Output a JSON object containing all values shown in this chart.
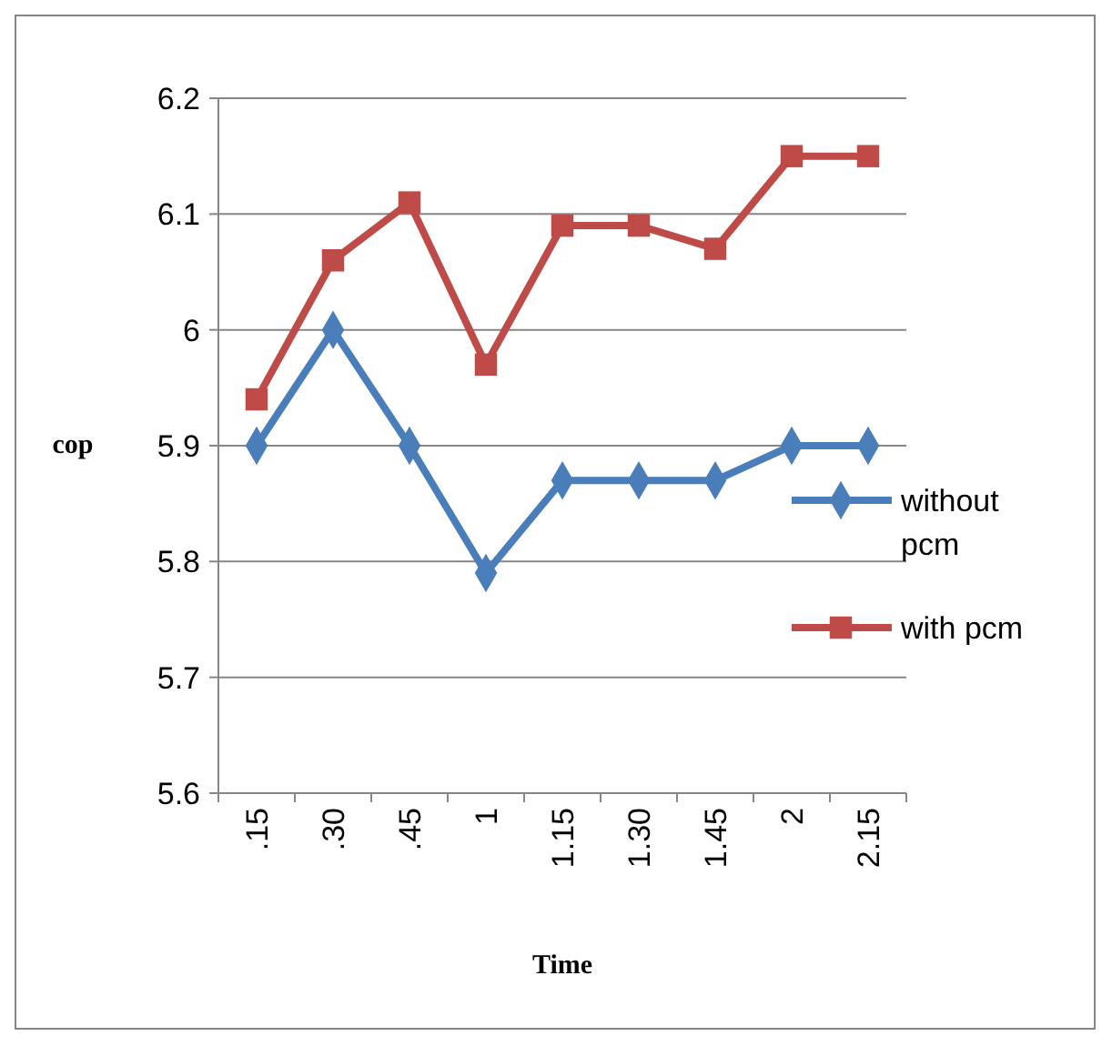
{
  "chart_data": {
    "type": "line",
    "xlabel": "Time",
    "ylabel": "cop",
    "categories": [
      ".15",
      ".30",
      ".45",
      "1",
      "1.15",
      "1.30",
      "1.45",
      "2",
      "2.15"
    ],
    "series": [
      {
        "name": "without pcm",
        "color": "#4a7ebb",
        "marker": "diamond",
        "values": [
          5.9,
          6.0,
          5.9,
          5.79,
          5.87,
          5.87,
          5.87,
          5.9,
          5.9
        ]
      },
      {
        "name": "with pcm",
        "color": "#be4b48",
        "marker": "square",
        "values": [
          5.94,
          6.06,
          6.11,
          5.97,
          6.09,
          6.09,
          6.07,
          6.15,
          6.15
        ]
      }
    ],
    "ylim": [
      5.6,
      6.2
    ],
    "yticks": [
      5.6,
      5.7,
      5.8,
      5.9,
      6,
      6.1,
      6.2
    ],
    "grid": "y",
    "legend": "right",
    "line_style": "solid"
  }
}
